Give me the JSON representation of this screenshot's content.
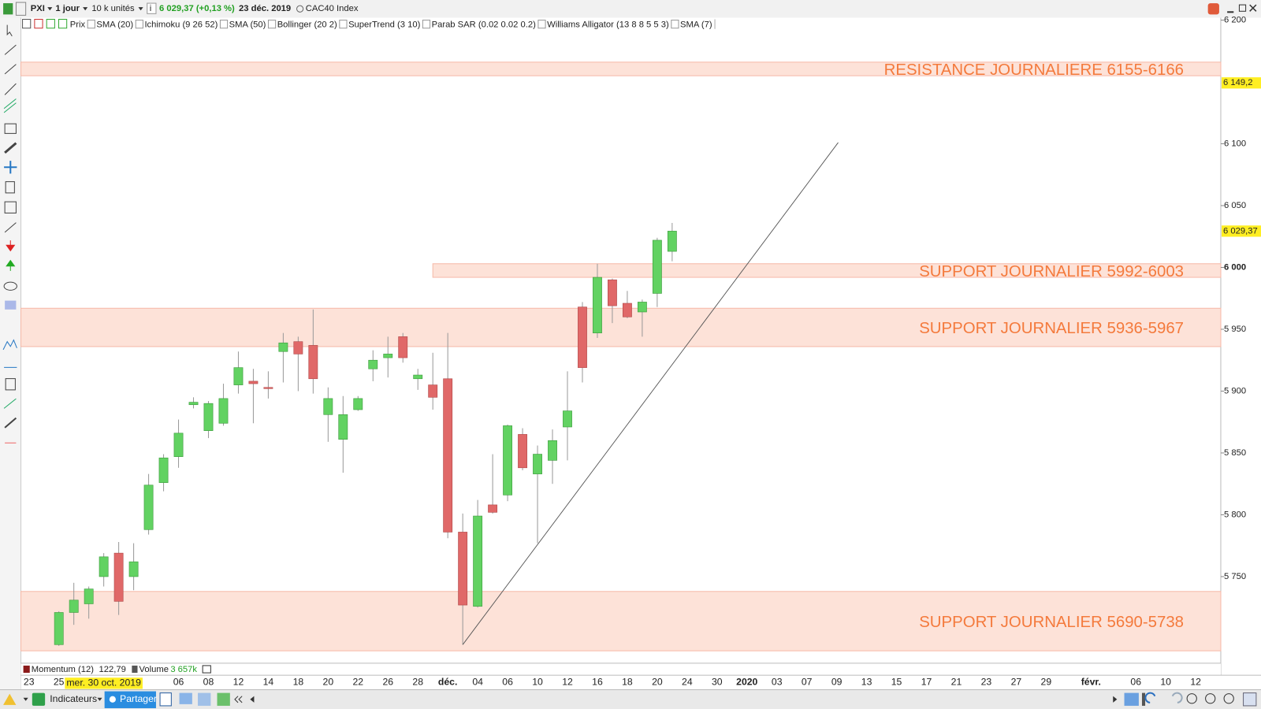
{
  "toolbar": {
    "symbol": "PXI",
    "period": "1 jour",
    "units": "10 k unités",
    "info": "i",
    "quote": "6 029,37 (+0,13 %)",
    "date": "23 déc. 2019",
    "instrument": "CAC40 Index"
  },
  "indicator_bar": {
    "items": [
      "Prix",
      "SMA (20)",
      "Ichimoku (9 26 52)",
      "SMA (50)",
      "Bollinger (20 2)",
      "SuperTrend (3 10)",
      "Parab SAR (0.02 0.02 0.2)",
      "Williams Alligator (13 8 8 5 5 3)",
      "SMA (7)"
    ]
  },
  "bottom_panel": {
    "momentum": "Momentum (12)",
    "momentum_value": "122,79",
    "volume": "Volume",
    "volume_value": "3 657k"
  },
  "bottom_toolbar": {
    "indicators": "Indicateurs",
    "share": "Partager"
  },
  "chart_data": {
    "type": "candlestick",
    "categories": [
      "23",
      null,
      "25",
      null,
      null,
      "mer. 30 oct. 2019",
      null,
      null,
      null,
      null,
      "06",
      null,
      "08",
      null,
      "12",
      null,
      "14",
      null,
      "18",
      null,
      "20",
      null,
      "22",
      null,
      "26",
      null,
      "28",
      null,
      "déc.",
      null,
      "04",
      null,
      "06",
      null,
      "10",
      null,
      "12",
      null,
      "16",
      null,
      "18",
      null,
      "20",
      null,
      "24",
      null,
      "30",
      null,
      "2020",
      null,
      "03",
      null,
      "07",
      null,
      "09",
      null,
      "13",
      null,
      "15",
      null,
      "17",
      null,
      "21",
      null,
      "23",
      null,
      "27",
      null,
      "29",
      null,
      null,
      "févr.",
      null,
      null,
      "06",
      null,
      "10",
      null,
      "12"
    ],
    "cursor_index": 5,
    "open": [
      null,
      null,
      5695,
      5721,
      5728,
      5750,
      5769,
      5750,
      5788,
      5826,
      5847,
      5889,
      5868,
      5874,
      5905,
      5908,
      5903,
      5932,
      5940,
      5937,
      5881,
      5861,
      5885,
      5918,
      5927,
      5944,
      5910,
      5905,
      5910,
      5786,
      5726,
      5808,
      5816,
      5865,
      5833,
      5844,
      5871,
      5968,
      5947,
      5990,
      5971,
      5964,
      5979,
      6013,
      null,
      null,
      null,
      null,
      null,
      null,
      null,
      null,
      null,
      null,
      null,
      null,
      null,
      null,
      null,
      null,
      null,
      null,
      null,
      null,
      null,
      null,
      null,
      null,
      null,
      null,
      null,
      null,
      null,
      null,
      null,
      null,
      null,
      null,
      null
    ],
    "high": [
      null,
      null,
      5722,
      5745,
      5742,
      5769,
      5778,
      5777,
      5833,
      5849,
      5877,
      5895,
      5892,
      5906,
      5932,
      5918,
      5916,
      5947,
      5944,
      5966,
      5903,
      5896,
      5896,
      5933,
      5944,
      5947,
      5918,
      5931,
      5947,
      5801,
      5812,
      5849,
      5873,
      5870,
      5856,
      5869,
      5916,
      5972,
      6003,
      5991,
      5981,
      5974,
      6024,
      6036,
      null,
      null,
      null,
      null,
      null,
      null,
      null,
      null,
      null,
      null,
      null,
      null,
      null,
      null,
      null,
      null,
      null,
      null,
      null,
      null,
      null,
      null,
      null,
      null,
      null,
      null,
      null,
      null,
      null,
      null,
      null,
      null,
      null,
      null,
      null
    ],
    "low": [
      null,
      null,
      5694,
      5711,
      5716,
      5742,
      5719,
      5739,
      5784,
      5819,
      5838,
      5886,
      5862,
      5872,
      5898,
      5874,
      5894,
      5907,
      5900,
      5898,
      5859,
      5834,
      5884,
      5908,
      5911,
      5923,
      5901,
      5885,
      5781,
      5695,
      5725,
      5801,
      5811,
      5836,
      5777,
      5825,
      5844,
      5907,
      5943,
      5955,
      5959,
      5944,
      5968,
      6005,
      null,
      null,
      null,
      null,
      null,
      null,
      null,
      null,
      null,
      null,
      null,
      null,
      null,
      null,
      null,
      null,
      null,
      null,
      null,
      null,
      null,
      null,
      null,
      null,
      null,
      null,
      null,
      null,
      null,
      null,
      null,
      null,
      null,
      null,
      null
    ],
    "close": [
      null,
      null,
      5721,
      5731,
      5740,
      5766,
      5730,
      5762,
      5824,
      5846,
      5866,
      5891,
      5890,
      5894,
      5919,
      5906,
      5902,
      5939,
      5930,
      5910,
      5894,
      5881,
      5894,
      5925,
      5930,
      5927,
      5913,
      5895,
      5786,
      5727,
      5799,
      5802,
      5872,
      5838,
      5849,
      5860,
      5884,
      5919,
      5992,
      5969,
      5960,
      5972,
      6022,
      6029.37,
      null,
      null,
      null,
      null,
      null,
      null,
      null,
      null,
      null,
      null,
      null,
      null,
      null,
      null,
      null,
      null,
      null,
      null,
      null,
      null,
      null,
      null,
      null,
      null,
      null,
      null,
      null,
      null,
      null,
      null,
      null,
      null,
      null,
      null,
      null
    ],
    "up_color": "#62d262",
    "down_color": "#e06868",
    "ylim": [
      5680,
      6200
    ],
    "yticks": [
      {
        "value": 6200,
        "label": "6 200"
      },
      {
        "value": 6100,
        "label": "6 100"
      },
      {
        "value": 6050,
        "label": "6 050"
      },
      {
        "value": 6000,
        "label": "6 000"
      },
      {
        "value": 5950,
        "label": "5 950"
      },
      {
        "value": 5900,
        "label": "5 900"
      },
      {
        "value": 5850,
        "label": "5 850"
      },
      {
        "value": 5800,
        "label": "5 800"
      },
      {
        "value": 5750,
        "label": "5 750"
      }
    ],
    "emphasis_tick": 3,
    "price_markers": [
      {
        "value": 6149.2,
        "label": "6 149,2"
      },
      {
        "value": 6029.37,
        "label": "6 029,37"
      }
    ],
    "zones": [
      {
        "low": 6155,
        "high": 6166,
        "label": "RESISTANCE JOURNALIERE 6155-6166"
      },
      {
        "low": 5992,
        "high": 6003,
        "label": "SUPPORT JOURNALIER 5992-6003",
        "start": 27
      },
      {
        "low": 5936,
        "high": 5967,
        "label": "SUPPORT JOURNALIER 5936-5967"
      },
      {
        "low": 5690,
        "high": 5738,
        "label": "SUPPORT JOURNALIER 5690-5738"
      }
    ],
    "zone_color": "#fde2d8",
    "zone_border": "#f6b9a8",
    "zone_label_color": "#f47a3c",
    "trendline": {
      "x": [
        29,
        54.1
      ],
      "y": [
        5695,
        6101
      ]
    }
  }
}
